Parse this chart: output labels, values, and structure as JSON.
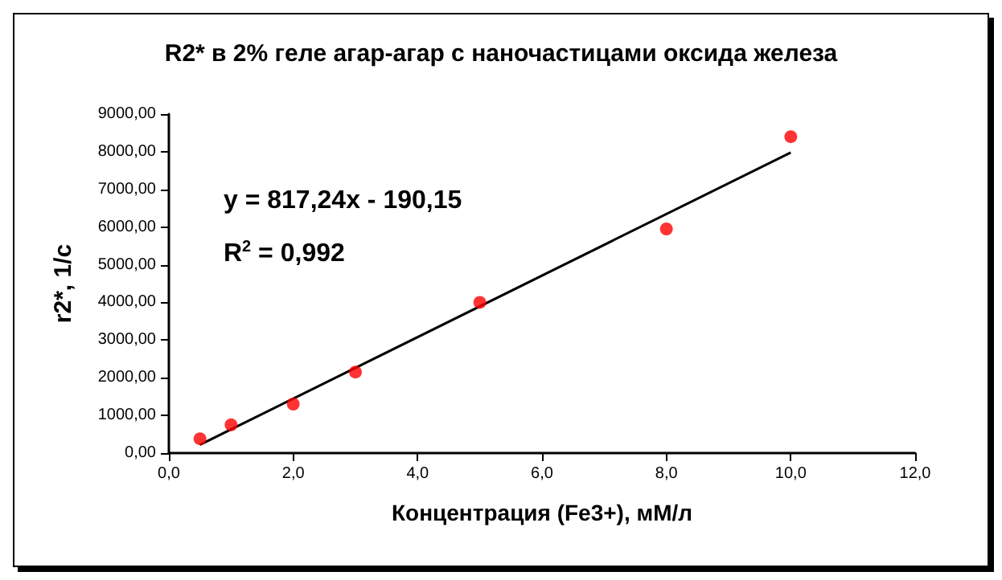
{
  "chart_data": {
    "type": "scatter",
    "title": "R2* в 2% геле агар-агар с наночастицами оксида железа",
    "xlabel": "Концентрация (Fe3+), мМ/л",
    "ylabel": "r2*, 1/c",
    "annotations": [
      "y = 817,24x - 190,15",
      "R$^{2}$ = 0,992"
    ],
    "series": [
      {
        "color": "#ff0000",
        "marker": "circle",
        "x": [
          0.5,
          1,
          2,
          3,
          5,
          8,
          10
        ],
        "values": [
          380,
          750,
          1300,
          2150,
          4000,
          5950,
          8400
        ]
      },
      {
        "type": "line",
        "color": "#000000",
        "marker": "none",
        "x": [
          0.5,
          10
        ],
        "values": [
          220,
          7980
        ]
      }
    ],
    "xlim": [
      0,
      12
    ],
    "xticks": [
      {
        "value": 0,
        "label": "0,0"
      },
      {
        "value": 2,
        "label": "2,0"
      },
      {
        "value": 4,
        "label": "4,0"
      },
      {
        "value": 6,
        "label": "6,0"
      },
      {
        "value": 8,
        "label": "8,0"
      },
      {
        "value": 10,
        "label": "10,0"
      },
      {
        "value": 12,
        "label": "12,0"
      }
    ],
    "ylim": [
      0,
      9000
    ],
    "yticks": [
      {
        "value": 0,
        "label": "0,00"
      },
      {
        "value": 1000,
        "label": "1000,00"
      },
      {
        "value": 2000,
        "label": "2000,00"
      },
      {
        "value": 3000,
        "label": "3000,00"
      },
      {
        "value": 4000,
        "label": "4000,00"
      },
      {
        "value": 5000,
        "label": "5000,00"
      },
      {
        "value": 6000,
        "label": "6000,00"
      },
      {
        "value": 7000,
        "label": "7000,00"
      },
      {
        "value": 8000,
        "label": "8000,00"
      },
      {
        "value": 9000,
        "label": "9000,00"
      }
    ],
    "grid": false
  }
}
